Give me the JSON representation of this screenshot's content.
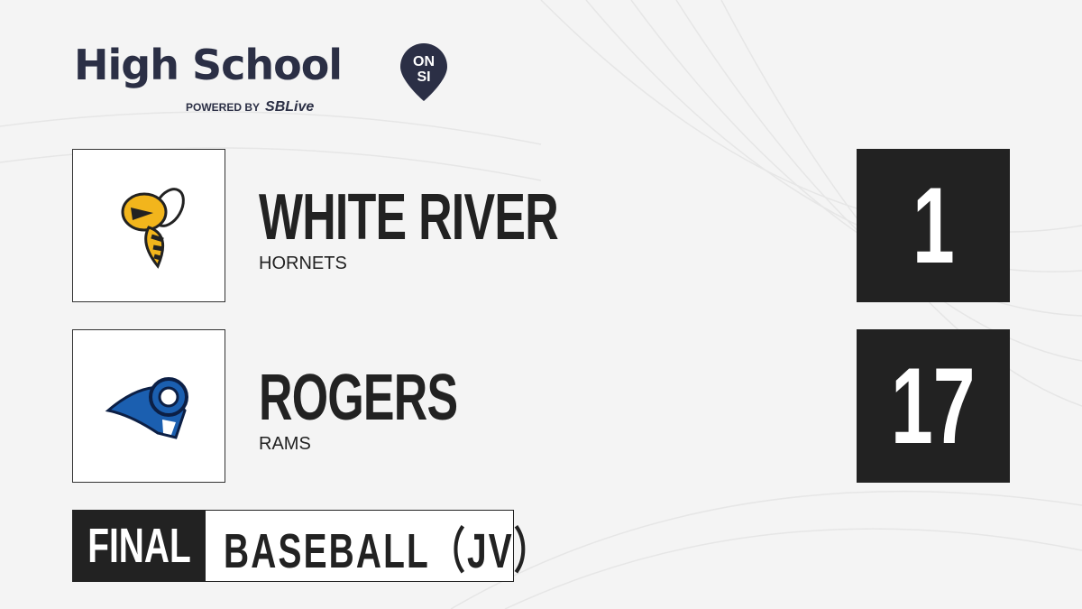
{
  "brand": {
    "title": "High School",
    "badge_top": "ON",
    "badge_bottom": "SI",
    "powered_by": "POWERED BY",
    "partner_s": "S",
    "partner_rest": "SBLive"
  },
  "teams": [
    {
      "name": "WHITE RIVER",
      "nickname": "HORNETS",
      "score": "1",
      "logo_icon": "hornet-mascot-icon"
    },
    {
      "name": "ROGERS",
      "nickname": "RAMS",
      "score": "17",
      "logo_icon": "ram-mascot-icon"
    }
  ],
  "status": "FINAL",
  "sport": "BASEBALL（JV）",
  "colors": {
    "dark": "#222222",
    "brand": "#2b2f45",
    "accent": "#1fb6e8"
  }
}
